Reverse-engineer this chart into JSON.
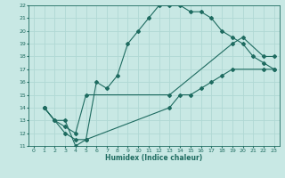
{
  "xlabel": "Humidex (Indice chaleur)",
  "xlim": [
    -0.5,
    23.5
  ],
  "ylim": [
    11,
    22
  ],
  "xticks": [
    0,
    1,
    2,
    3,
    4,
    5,
    6,
    7,
    8,
    9,
    10,
    11,
    12,
    13,
    14,
    15,
    16,
    17,
    18,
    19,
    20,
    21,
    22,
    23
  ],
  "yticks": [
    11,
    12,
    13,
    14,
    15,
    16,
    17,
    18,
    19,
    20,
    21,
    22
  ],
  "bg_color": "#c8e8e4",
  "line_color": "#1e6b60",
  "grid_color": "#b0d8d4",
  "line1_x": [
    1,
    2,
    3,
    4,
    5,
    6,
    7,
    8,
    9,
    10,
    11,
    12,
    13,
    14,
    15,
    16,
    17,
    18,
    19,
    20,
    21,
    22,
    23
  ],
  "line1_y": [
    14,
    13,
    13,
    11,
    11.5,
    16,
    15.5,
    16.5,
    19,
    20,
    21,
    22,
    22,
    22,
    21.5,
    21.5,
    21,
    20,
    19.5,
    19,
    18,
    17.5,
    17
  ],
  "line2_x": [
    1,
    2,
    3,
    4,
    5,
    13,
    19,
    20,
    22,
    23
  ],
  "line2_y": [
    14,
    13,
    12.5,
    12,
    15,
    15,
    19,
    19.5,
    18,
    18
  ],
  "line3_x": [
    1,
    3,
    4,
    5,
    13,
    14,
    15,
    16,
    17,
    18,
    19,
    22,
    23
  ],
  "line3_y": [
    14,
    12,
    11.5,
    11.5,
    14,
    15,
    15,
    15.5,
    16,
    16.5,
    17,
    17,
    17
  ]
}
